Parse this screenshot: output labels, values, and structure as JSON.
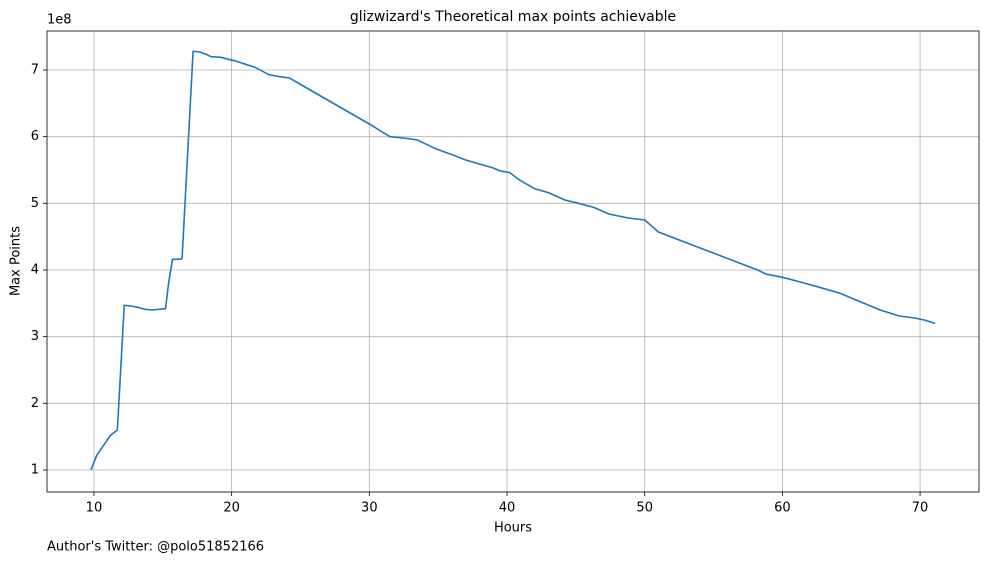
{
  "chart_data": {
    "type": "line",
    "title": "glizwizard's Theoretical max points achievable",
    "x_label": "Hours",
    "y_label": "Max Points",
    "y_offset_label": "1e8",
    "footer": "Author's Twitter: @polo51852166",
    "color": "#1f77b4",
    "grid": true,
    "x": [
      9.78,
      10.2,
      10.7,
      11.2,
      11.7,
      12.2,
      12.7,
      13.2,
      13.7,
      14.2,
      14.7,
      15.2,
      15.4,
      15.7,
      16.2,
      16.4,
      17.2,
      17.7,
      18.2,
      18.5,
      19.2,
      20.2,
      21.7,
      22.7,
      23.5,
      24.2,
      25.2,
      30,
      31.5,
      32.5,
      33.5,
      34.8,
      36,
      37,
      38,
      39,
      39.45,
      40.2,
      40.9,
      42,
      43,
      44.2,
      45.2,
      46.3,
      47.4,
      48.1,
      48.8,
      50,
      51,
      58.2,
      58.8,
      60,
      61.3,
      62.7,
      64.2,
      65.6,
      67.1,
      68.5,
      69.6,
      70.3,
      71.1
    ],
    "values": [
      1.0,
      1.22,
      1.37,
      1.52,
      1.6,
      3.47,
      3.46,
      3.44,
      3.41,
      3.4,
      3.41,
      3.42,
      3.77,
      4.16,
      4.16,
      4.17,
      7.28,
      7.27,
      7.23,
      7.2,
      7.19,
      7.14,
      7.04,
      6.93,
      6.9,
      6.88,
      6.76,
      6.19,
      6.0,
      5.98,
      5.95,
      5.82,
      5.73,
      5.65,
      5.59,
      5.53,
      5.49,
      5.46,
      5.35,
      5.22,
      5.16,
      5.05,
      5.0,
      4.94,
      4.84,
      4.81,
      4.78,
      4.75,
      4.57,
      4.0,
      3.94,
      3.89,
      3.82,
      3.74,
      3.65,
      3.53,
      3.4,
      3.31,
      3.28,
      3.25,
      3.2
    ],
    "xlim": [
      6.59,
      74.28
    ],
    "xticks": [
      10,
      20,
      30,
      40,
      50,
      60,
      70
    ],
    "ylim": [
      0.67,
      7.585
    ],
    "yticks": [
      1,
      2,
      3,
      4,
      5,
      6,
      7
    ]
  }
}
